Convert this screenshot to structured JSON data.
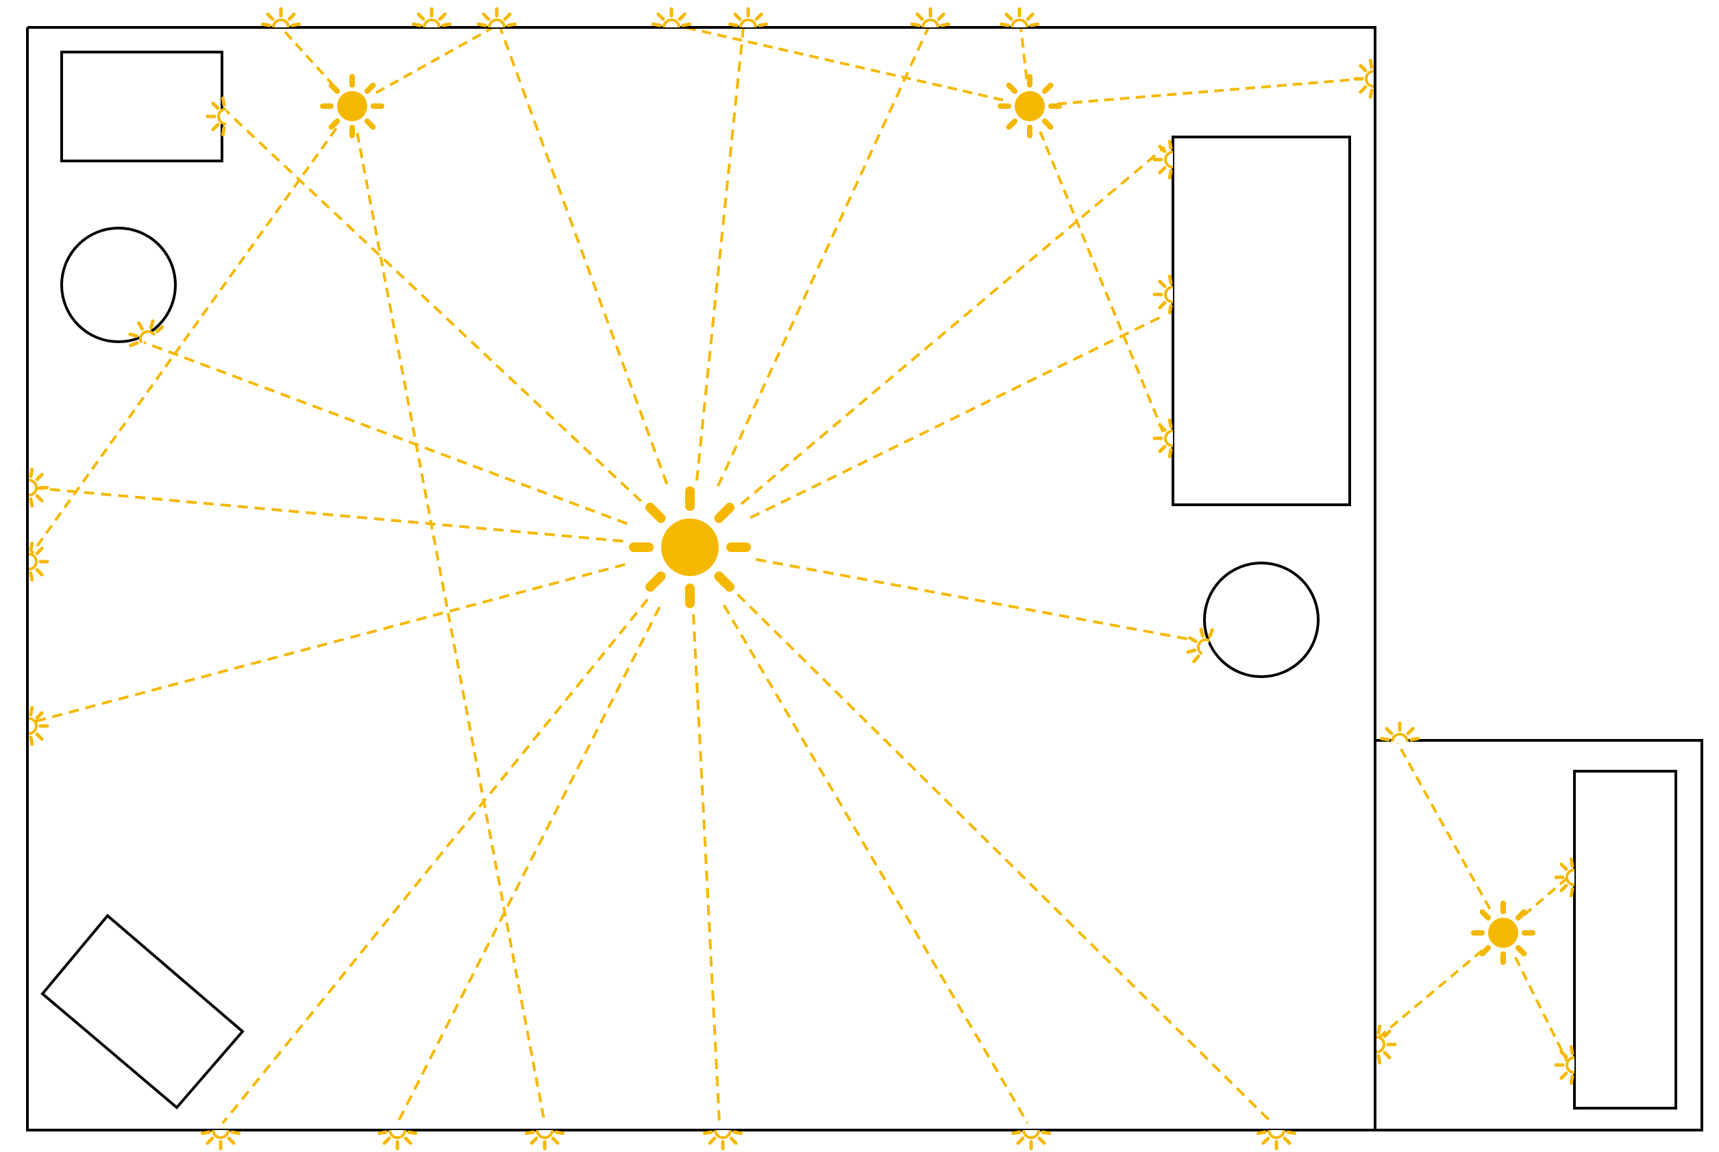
{
  "diagram": {
    "type": "floor-plan-light-propagation",
    "colors": {
      "light": "#F5B800",
      "outline": "#000000",
      "background": "#ffffff"
    },
    "icons": {
      "primary_source": "sun-icon",
      "secondary_source": "small-sun-icon",
      "reflection_point": "half-sun-icon"
    },
    "furniture": {
      "rectangles": 4,
      "rotated_rectangles": 1,
      "circles": 2
    },
    "bounces": {
      "primary_sources": 1,
      "secondary_sources": 3
    },
    "text": {
      "title": "",
      "labels": []
    }
  }
}
